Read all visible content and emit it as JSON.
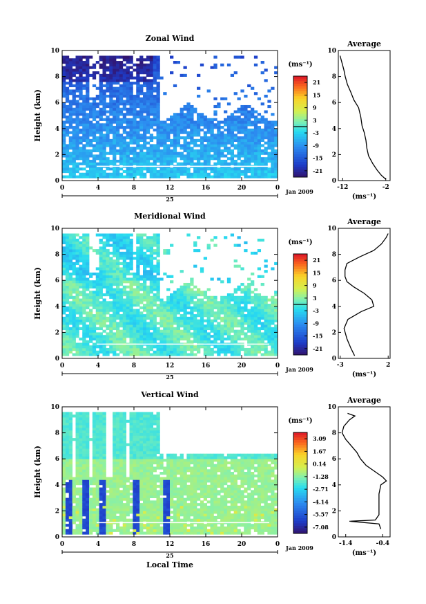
{
  "chart_data": [
    {
      "type": "heatmap",
      "title": "Zonal Wind",
      "ylabel": "Height (km)",
      "xticks": [
        "0",
        "4",
        "8",
        "12",
        "16",
        "20",
        "0"
      ],
      "x_range_hours": [
        0,
        24
      ],
      "yticks": [
        "0",
        "2",
        "4",
        "6",
        "8",
        "10"
      ],
      "ylim": [
        0,
        10
      ],
      "date_label": "Jan 2009",
      "day_label": "25",
      "colorbar": {
        "unit": "(ms⁻¹)",
        "ticks": [
          "21",
          "15",
          "9",
          "3",
          "-3",
          "-9",
          "-15",
          "-21"
        ],
        "range": [
          -24,
          24
        ],
        "zero_line": true
      },
      "data_extent_km": 9.6,
      "grid_cols": 64,
      "grid_rows": 48,
      "profile": {
        "title": "Average",
        "xlabel": "(ms⁻¹)",
        "xticks": [
          "-12",
          "-2"
        ],
        "xlim": [
          -13,
          -1
        ],
        "ylim": [
          0,
          10
        ],
        "yticks": [
          "0",
          "2",
          "4",
          "6",
          "8",
          "10"
        ],
        "points": [
          [
            -2,
            0.1
          ],
          [
            -3,
            0.4
          ],
          [
            -4,
            0.8
          ],
          [
            -5,
            1.3
          ],
          [
            -6,
            1.9
          ],
          [
            -6.4,
            2.5
          ],
          [
            -6.6,
            3.1
          ],
          [
            -7,
            3.7
          ],
          [
            -7.5,
            4.2
          ],
          [
            -7.8,
            4.9
          ],
          [
            -8.3,
            5.6
          ],
          [
            -9.4,
            6.2
          ],
          [
            -10.1,
            6.8
          ],
          [
            -10.9,
            7.4
          ],
          [
            -11.4,
            8.0
          ],
          [
            -11.7,
            8.5
          ],
          [
            -12.1,
            9.0
          ],
          [
            -12.6,
            9.6
          ]
        ]
      }
    },
    {
      "type": "heatmap",
      "title": "Meridional Wind",
      "ylabel": "Height (km)",
      "xticks": [
        "0",
        "4",
        "8",
        "12",
        "16",
        "20",
        "0"
      ],
      "x_range_hours": [
        0,
        24
      ],
      "yticks": [
        "0",
        "2",
        "4",
        "6",
        "8",
        "10"
      ],
      "ylim": [
        0,
        10
      ],
      "date_label": "Jan 2009",
      "day_label": "25",
      "colorbar": {
        "unit": "(ms⁻¹)",
        "ticks": [
          "21",
          "15",
          "9",
          "3",
          "-3",
          "-9",
          "-15",
          "-21"
        ],
        "range": [
          -24,
          24
        ],
        "zero_line": true
      },
      "data_extent_km": 9.6,
      "grid_cols": 64,
      "grid_rows": 48,
      "profile": {
        "title": "Average",
        "xlabel": "(ms⁻¹)",
        "xticks": [
          "-3",
          "2"
        ],
        "xlim": [
          -3.2,
          2.2
        ],
        "ylim": [
          0,
          10
        ],
        "yticks": [
          "0",
          "2",
          "4",
          "6",
          "8",
          "10"
        ],
        "points": [
          [
            -1.5,
            0.2
          ],
          [
            -1.9,
            0.8
          ],
          [
            -2.3,
            1.5
          ],
          [
            -2.6,
            2.3
          ],
          [
            -2.2,
            3.0
          ],
          [
            -0.8,
            3.6
          ],
          [
            0.5,
            4.0
          ],
          [
            0.3,
            4.5
          ],
          [
            -0.5,
            5.0
          ],
          [
            -1.6,
            5.5
          ],
          [
            -2.3,
            5.9
          ],
          [
            -2.5,
            6.3
          ],
          [
            -2.5,
            6.8
          ],
          [
            -2.3,
            7.3
          ],
          [
            -1.0,
            7.8
          ],
          [
            0.5,
            8.3
          ],
          [
            1.3,
            8.8
          ],
          [
            1.8,
            9.3
          ],
          [
            2.0,
            9.6
          ]
        ]
      }
    },
    {
      "type": "heatmap",
      "title": "Vertical Wind",
      "xlabel": "Local Time",
      "ylabel": "Height (km)",
      "xticks": [
        "0",
        "4",
        "8",
        "12",
        "16",
        "20",
        "0"
      ],
      "x_range_hours": [
        0,
        24
      ],
      "yticks": [
        "0",
        "2",
        "4",
        "6",
        "8",
        "10"
      ],
      "ylim": [
        0,
        10
      ],
      "date_label": "Jan 2009",
      "day_label": "25",
      "colorbar": {
        "unit": "(ms⁻¹)",
        "ticks": [
          "3.09",
          "1.67",
          "0.14",
          "-1.28",
          "-2.71",
          "-4.14",
          "-5.57",
          "-7.08"
        ],
        "range": [
          -7.8,
          3.8
        ],
        "zero_line": false
      },
      "data_extent_km": 9.6,
      "grid_cols": 64,
      "grid_rows": 48,
      "profile": {
        "title": "Average",
        "xlabel": "(ms⁻¹)",
        "xticks": [
          "-1.4",
          "-0.4"
        ],
        "xlim": [
          -1.6,
          -0.2
        ],
        "ylim": [
          0,
          10
        ],
        "yticks": [
          "0",
          "2",
          "4",
          "6",
          "8",
          "10"
        ],
        "points": [
          [
            -0.45,
            0.6
          ],
          [
            -0.5,
            1.0
          ],
          [
            -1.3,
            1.2
          ],
          [
            -0.6,
            1.3
          ],
          [
            -0.5,
            1.7
          ],
          [
            -0.5,
            2.5
          ],
          [
            -0.5,
            3.3
          ],
          [
            -0.45,
            4.0
          ],
          [
            -0.3,
            4.3
          ],
          [
            -0.4,
            4.6
          ],
          [
            -0.6,
            5.0
          ],
          [
            -0.85,
            5.5
          ],
          [
            -1.0,
            6.0
          ],
          [
            -1.1,
            6.5
          ],
          [
            -1.25,
            7.0
          ],
          [
            -1.4,
            7.5
          ],
          [
            -1.5,
            8.0
          ],
          [
            -1.45,
            8.5
          ],
          [
            -1.3,
            9.0
          ],
          [
            -1.15,
            9.3
          ],
          [
            -1.35,
            9.5
          ]
        ]
      }
    }
  ]
}
